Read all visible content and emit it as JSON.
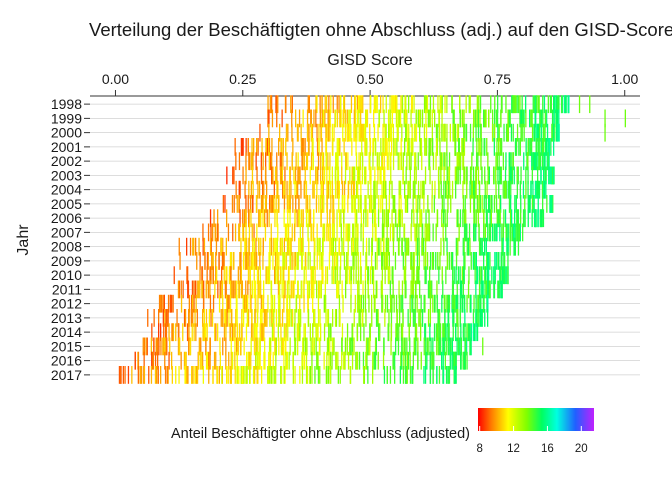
{
  "chart_data": {
    "type": "heatmap",
    "title": "Verteilung der Beschäftigten ohne Abschluss (adj.) auf den GISD-Score",
    "xlabel": "GISD Score",
    "ylabel": "Jahr",
    "x_axis_position": "top",
    "xlim": [
      -0.05,
      1.03
    ],
    "x_ticks": [
      "0.00",
      "0.25",
      "0.50",
      "0.75",
      "1.00"
    ],
    "x_tick_values": [
      0,
      0.25,
      0.5,
      0.75,
      1.0
    ],
    "years": [
      "1998",
      "1999",
      "2000",
      "2001",
      "2002",
      "2003",
      "2004",
      "2005",
      "2006",
      "2007",
      "2008",
      "2009",
      "2010",
      "2011",
      "2012",
      "2013",
      "2014",
      "2015",
      "2016",
      "2017"
    ],
    "grid": true,
    "series": [
      {
        "year": "1998",
        "gisd_min": 0.29,
        "gisd_max": 0.89,
        "outliers": [
          0.91,
          0.93
        ]
      },
      {
        "year": "1999",
        "gisd_min": 0.27,
        "gisd_max": 0.87,
        "outliers": [
          0.96,
          1.0
        ]
      },
      {
        "year": "2000",
        "gisd_min": 0.27,
        "gisd_max": 0.87,
        "outliers": [
          0.96
        ]
      },
      {
        "year": "2001",
        "gisd_min": 0.23,
        "gisd_max": 0.86,
        "outliers": []
      },
      {
        "year": "2002",
        "gisd_min": 0.23,
        "gisd_max": 0.86,
        "outliers": []
      },
      {
        "year": "2003",
        "gisd_min": 0.21,
        "gisd_max": 0.86,
        "outliers": []
      },
      {
        "year": "2004",
        "gisd_min": 0.22,
        "gisd_max": 0.85,
        "outliers": []
      },
      {
        "year": "2005",
        "gisd_min": 0.21,
        "gisd_max": 0.86,
        "outliers": []
      },
      {
        "year": "2006",
        "gisd_min": 0.18,
        "gisd_max": 0.84,
        "outliers": []
      },
      {
        "year": "2007",
        "gisd_min": 0.16,
        "gisd_max": 0.8,
        "outliers": []
      },
      {
        "year": "2008",
        "gisd_min": 0.12,
        "gisd_max": 0.79,
        "outliers": []
      },
      {
        "year": "2009",
        "gisd_min": 0.12,
        "gisd_max": 0.77,
        "outliers": []
      },
      {
        "year": "2010",
        "gisd_min": 0.11,
        "gisd_max": 0.77,
        "outliers": []
      },
      {
        "year": "2011",
        "gisd_min": 0.11,
        "gisd_max": 0.76,
        "outliers": []
      },
      {
        "year": "2012",
        "gisd_min": 0.08,
        "gisd_max": 0.73,
        "outliers": []
      },
      {
        "year": "2013",
        "gisd_min": 0.06,
        "gisd_max": 0.73,
        "outliers": []
      },
      {
        "year": "2014",
        "gisd_min": 0.06,
        "gisd_max": 0.71,
        "outliers": []
      },
      {
        "year": "2015",
        "gisd_min": 0.04,
        "gisd_max": 0.7,
        "outliers": [
          0.72
        ]
      },
      {
        "year": "2016",
        "gisd_min": 0.03,
        "gisd_max": 0.69,
        "outliers": []
      },
      {
        "year": "2017",
        "gisd_min": 0.0,
        "gisd_max": 0.67,
        "outliers": []
      }
    ],
    "legend": {
      "title": "Anteil Beschäftigter ohne Abschluss (adjusted)",
      "position": "bottom",
      "ticks": [
        "8",
        "12",
        "16",
        "20"
      ],
      "tick_values": [
        8,
        12,
        16,
        20
      ],
      "range": [
        7.8,
        21.5
      ],
      "colors": [
        "#ff0000",
        "#ff8000",
        "#ffff00",
        "#80ff00",
        "#00ff60",
        "#00ffe0",
        "#2060ff",
        "#c020ff"
      ]
    }
  }
}
